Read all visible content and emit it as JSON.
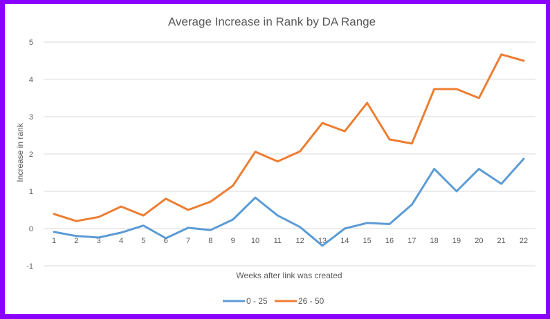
{
  "chart_data": {
    "type": "line",
    "title": "Average Increase in Rank by DA Range",
    "xlabel": "Weeks after link was created",
    "ylabel": "Increase in rank",
    "x": [
      1,
      2,
      3,
      4,
      5,
      6,
      7,
      8,
      9,
      10,
      11,
      12,
      13,
      14,
      15,
      16,
      17,
      18,
      19,
      20,
      21,
      22
    ],
    "x_tick_labels": [
      "1",
      "2",
      "3",
      "4",
      "5",
      "6",
      "7",
      "8",
      "9",
      "10",
      "11",
      "12",
      "13",
      "14",
      "15",
      "16",
      "17",
      "18",
      "19",
      "20",
      "21",
      "22"
    ],
    "ylim": [
      -1,
      5
    ],
    "y_ticks": [
      5,
      4,
      3,
      2,
      1,
      0,
      -1
    ],
    "y_tick_labels": [
      "5",
      "4",
      "3",
      "2",
      "1",
      "0",
      "-1"
    ],
    "grid": true,
    "legend_position": "bottom",
    "series": [
      {
        "name": "0 - 25",
        "color": "#5b9bd5",
        "values": [
          -0.09,
          -0.2,
          -0.24,
          -0.11,
          0.08,
          -0.26,
          0.02,
          -0.04,
          0.24,
          0.83,
          0.35,
          0.04,
          -0.46,
          0.0,
          0.15,
          0.12,
          0.64,
          1.6,
          1.0,
          1.6,
          1.2,
          1.87
        ]
      },
      {
        "name": "26 - 50",
        "color": "#ed7d31",
        "values": [
          0.39,
          0.2,
          0.31,
          0.59,
          0.35,
          0.8,
          0.5,
          0.72,
          1.15,
          2.06,
          1.8,
          2.07,
          2.83,
          2.61,
          3.37,
          2.39,
          2.28,
          3.74,
          3.74,
          3.5,
          4.67,
          4.5
        ]
      }
    ]
  }
}
